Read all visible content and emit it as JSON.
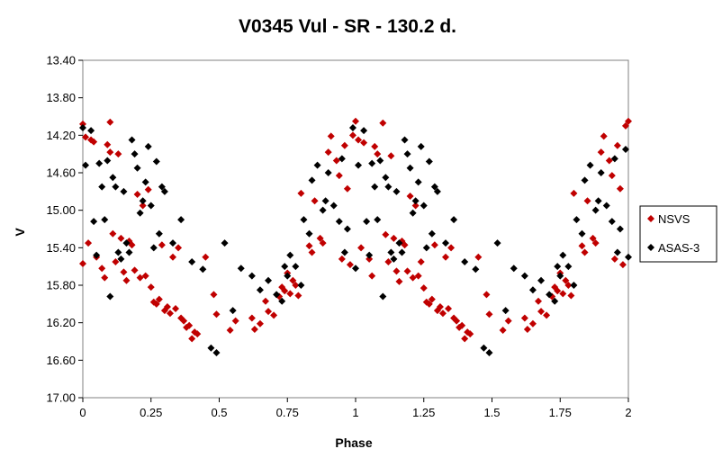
{
  "chart_data": {
    "type": "scatter",
    "title": "V0345 Vul - SR - 130.2 d.",
    "xlabel": "Phase",
    "ylabel": "V",
    "xlim": [
      0,
      2
    ],
    "ylim": [
      13.4,
      17.0
    ],
    "y_inverted": true,
    "xticks": [
      0,
      0.25,
      0.5,
      0.75,
      1,
      1.25,
      1.5,
      1.75,
      2
    ],
    "xtick_labels": [
      "0",
      "0.25",
      "0.5",
      "0.75",
      "1",
      "1.25",
      "1.5",
      "1.75",
      "2"
    ],
    "yticks": [
      13.4,
      13.8,
      14.2,
      14.6,
      15.0,
      15.4,
      15.8,
      16.2,
      16.6,
      17.0
    ],
    "ytick_labels": [
      "13.40",
      "13.80",
      "14.20",
      "14.60",
      "15.00",
      "15.40",
      "15.80",
      "16.20",
      "16.60",
      "17.00"
    ],
    "grid": false,
    "legend_position": "right",
    "series": [
      {
        "name": "NSVS",
        "color": "#c00000",
        "marker": "diamond",
        "points": [
          [
            0.0,
            14.08
          ],
          [
            0.0,
            15.57
          ],
          [
            0.01,
            14.22
          ],
          [
            0.02,
            15.35
          ],
          [
            0.03,
            14.25
          ],
          [
            0.04,
            14.27
          ],
          [
            0.05,
            15.5
          ],
          [
            0.07,
            15.62
          ],
          [
            0.08,
            15.72
          ],
          [
            0.09,
            14.3
          ],
          [
            0.1,
            14.06
          ],
          [
            0.1,
            14.38
          ],
          [
            0.11,
            15.25
          ],
          [
            0.12,
            15.55
          ],
          [
            0.13,
            14.4
          ],
          [
            0.14,
            15.3
          ],
          [
            0.15,
            15.66
          ],
          [
            0.16,
            15.75
          ],
          [
            0.17,
            15.33
          ],
          [
            0.18,
            15.37
          ],
          [
            0.19,
            15.64
          ],
          [
            0.2,
            14.83
          ],
          [
            0.21,
            15.72
          ],
          [
            0.22,
            14.95
          ],
          [
            0.23,
            15.7
          ],
          [
            0.24,
            14.78
          ],
          [
            0.25,
            15.82
          ],
          [
            0.26,
            15.98
          ],
          [
            0.27,
            16.0
          ],
          [
            0.28,
            15.95
          ],
          [
            0.29,
            15.37
          ],
          [
            0.3,
            16.07
          ],
          [
            0.31,
            16.03
          ],
          [
            0.32,
            16.1
          ],
          [
            0.33,
            15.5
          ],
          [
            0.34,
            16.05
          ],
          [
            0.35,
            15.4
          ],
          [
            0.36,
            16.15
          ],
          [
            0.37,
            16.18
          ],
          [
            0.38,
            16.25
          ],
          [
            0.39,
            16.23
          ],
          [
            0.4,
            16.37
          ],
          [
            0.41,
            16.3
          ],
          [
            0.42,
            16.32
          ],
          [
            0.45,
            15.5
          ],
          [
            0.48,
            15.9
          ],
          [
            0.49,
            16.11
          ],
          [
            0.54,
            16.28
          ],
          [
            0.56,
            16.18
          ],
          [
            0.62,
            16.15
          ],
          [
            0.63,
            16.27
          ],
          [
            0.65,
            16.21
          ],
          [
            0.67,
            15.97
          ],
          [
            0.68,
            16.08
          ],
          [
            0.7,
            16.12
          ],
          [
            0.72,
            15.92
          ],
          [
            0.73,
            15.82
          ],
          [
            0.74,
            15.86
          ],
          [
            0.75,
            15.67
          ],
          [
            0.76,
            15.89
          ],
          [
            0.77,
            15.75
          ],
          [
            0.78,
            15.8
          ],
          [
            0.79,
            15.91
          ],
          [
            0.8,
            14.82
          ],
          [
            0.83,
            15.38
          ],
          [
            0.84,
            15.45
          ],
          [
            0.85,
            14.9
          ],
          [
            0.87,
            15.3
          ],
          [
            0.88,
            15.35
          ],
          [
            0.9,
            14.38
          ],
          [
            0.91,
            14.21
          ],
          [
            0.93,
            14.47
          ],
          [
            0.94,
            14.63
          ],
          [
            0.95,
            15.52
          ],
          [
            0.96,
            14.31
          ],
          [
            0.97,
            14.77
          ],
          [
            0.98,
            15.58
          ],
          [
            0.99,
            14.2
          ],
          [
            1.0,
            14.05
          ],
          [
            1.01,
            14.25
          ],
          [
            1.02,
            15.4
          ],
          [
            1.03,
            14.28
          ],
          [
            1.05,
            15.52
          ],
          [
            1.06,
            15.7
          ],
          [
            1.07,
            14.32
          ],
          [
            1.08,
            14.4
          ],
          [
            1.1,
            14.07
          ],
          [
            1.11,
            15.26
          ],
          [
            1.12,
            15.55
          ],
          [
            1.13,
            14.42
          ],
          [
            1.14,
            15.3
          ],
          [
            1.15,
            15.65
          ],
          [
            1.16,
            15.76
          ],
          [
            1.17,
            15.33
          ],
          [
            1.18,
            15.37
          ],
          [
            1.19,
            15.65
          ],
          [
            1.2,
            14.85
          ],
          [
            1.21,
            15.72
          ],
          [
            1.22,
            14.95
          ],
          [
            1.23,
            15.7
          ],
          [
            1.24,
            15.55
          ],
          [
            1.25,
            15.83
          ],
          [
            1.26,
            15.98
          ],
          [
            1.27,
            16.0
          ],
          [
            1.28,
            15.95
          ],
          [
            1.29,
            15.37
          ],
          [
            1.3,
            16.07
          ],
          [
            1.31,
            16.03
          ],
          [
            1.32,
            16.1
          ],
          [
            1.33,
            15.5
          ],
          [
            1.34,
            16.05
          ],
          [
            1.35,
            15.4
          ],
          [
            1.36,
            16.15
          ],
          [
            1.37,
            16.18
          ],
          [
            1.38,
            16.25
          ],
          [
            1.39,
            16.23
          ],
          [
            1.4,
            16.37
          ],
          [
            1.41,
            16.3
          ],
          [
            1.42,
            16.32
          ],
          [
            1.45,
            15.5
          ],
          [
            1.48,
            15.9
          ],
          [
            1.49,
            16.11
          ],
          [
            1.54,
            16.28
          ],
          [
            1.56,
            16.18
          ],
          [
            1.62,
            16.15
          ],
          [
            1.63,
            16.27
          ],
          [
            1.65,
            16.21
          ],
          [
            1.67,
            15.97
          ],
          [
            1.68,
            16.08
          ],
          [
            1.7,
            16.12
          ],
          [
            1.72,
            15.92
          ],
          [
            1.73,
            15.82
          ],
          [
            1.74,
            15.86
          ],
          [
            1.75,
            15.67
          ],
          [
            1.76,
            15.89
          ],
          [
            1.77,
            15.75
          ],
          [
            1.78,
            15.8
          ],
          [
            1.79,
            15.91
          ],
          [
            1.8,
            14.82
          ],
          [
            1.83,
            15.38
          ],
          [
            1.84,
            15.45
          ],
          [
            1.85,
            14.9
          ],
          [
            1.87,
            15.3
          ],
          [
            1.88,
            15.35
          ],
          [
            1.9,
            14.38
          ],
          [
            1.91,
            14.21
          ],
          [
            1.93,
            14.47
          ],
          [
            1.94,
            14.63
          ],
          [
            1.95,
            15.52
          ],
          [
            1.96,
            14.31
          ],
          [
            1.97,
            14.77
          ],
          [
            1.98,
            15.58
          ],
          [
            1.99,
            14.1
          ],
          [
            2.0,
            14.05
          ]
        ]
      },
      {
        "name": "ASAS-3",
        "color": "#000000",
        "marker": "diamond",
        "points": [
          [
            0.0,
            14.12
          ],
          [
            0.01,
            14.52
          ],
          [
            0.03,
            14.15
          ],
          [
            0.04,
            15.12
          ],
          [
            0.05,
            15.48
          ],
          [
            0.06,
            14.5
          ],
          [
            0.07,
            14.75
          ],
          [
            0.08,
            15.1
          ],
          [
            0.09,
            14.47
          ],
          [
            0.1,
            15.92
          ],
          [
            0.11,
            14.65
          ],
          [
            0.12,
            14.75
          ],
          [
            0.13,
            15.45
          ],
          [
            0.14,
            15.52
          ],
          [
            0.15,
            14.8
          ],
          [
            0.16,
            15.35
          ],
          [
            0.17,
            15.45
          ],
          [
            0.18,
            14.25
          ],
          [
            0.19,
            14.4
          ],
          [
            0.2,
            14.55
          ],
          [
            0.21,
            15.03
          ],
          [
            0.22,
            14.9
          ],
          [
            0.23,
            14.7
          ],
          [
            0.24,
            14.32
          ],
          [
            0.25,
            14.95
          ],
          [
            0.26,
            15.4
          ],
          [
            0.27,
            14.48
          ],
          [
            0.28,
            15.25
          ],
          [
            0.29,
            14.75
          ],
          [
            0.3,
            14.8
          ],
          [
            0.33,
            15.35
          ],
          [
            0.36,
            15.1
          ],
          [
            0.4,
            15.55
          ],
          [
            0.44,
            15.63
          ],
          [
            0.47,
            16.47
          ],
          [
            0.49,
            16.52
          ],
          [
            0.52,
            15.35
          ],
          [
            0.55,
            16.07
          ],
          [
            0.58,
            15.62
          ],
          [
            0.62,
            15.7
          ],
          [
            0.65,
            15.85
          ],
          [
            0.68,
            15.75
          ],
          [
            0.71,
            15.9
          ],
          [
            0.73,
            15.97
          ],
          [
            0.74,
            15.6
          ],
          [
            0.75,
            15.7
          ],
          [
            0.76,
            15.48
          ],
          [
            0.78,
            15.6
          ],
          [
            0.8,
            15.8
          ],
          [
            0.81,
            15.1
          ],
          [
            0.83,
            15.25
          ],
          [
            0.84,
            14.68
          ],
          [
            0.86,
            14.52
          ],
          [
            0.88,
            15.0
          ],
          [
            0.89,
            14.9
          ],
          [
            0.9,
            14.6
          ],
          [
            0.92,
            14.95
          ],
          [
            0.94,
            15.12
          ],
          [
            0.95,
            14.45
          ],
          [
            0.96,
            15.45
          ],
          [
            0.97,
            15.2
          ],
          [
            0.99,
            14.12
          ],
          [
            1.0,
            15.62
          ],
          [
            1.01,
            14.52
          ],
          [
            1.03,
            14.15
          ],
          [
            1.04,
            15.12
          ],
          [
            1.05,
            15.48
          ],
          [
            1.06,
            14.5
          ],
          [
            1.07,
            14.75
          ],
          [
            1.08,
            15.1
          ],
          [
            1.09,
            14.47
          ],
          [
            1.1,
            15.92
          ],
          [
            1.11,
            14.65
          ],
          [
            1.12,
            14.75
          ],
          [
            1.13,
            15.45
          ],
          [
            1.14,
            15.52
          ],
          [
            1.15,
            14.8
          ],
          [
            1.16,
            15.35
          ],
          [
            1.17,
            15.45
          ],
          [
            1.18,
            14.25
          ],
          [
            1.19,
            14.4
          ],
          [
            1.2,
            14.55
          ],
          [
            1.21,
            15.03
          ],
          [
            1.22,
            14.9
          ],
          [
            1.23,
            14.7
          ],
          [
            1.24,
            14.32
          ],
          [
            1.25,
            14.95
          ],
          [
            1.26,
            15.4
          ],
          [
            1.27,
            14.48
          ],
          [
            1.28,
            15.25
          ],
          [
            1.29,
            14.75
          ],
          [
            1.3,
            14.8
          ],
          [
            1.33,
            15.35
          ],
          [
            1.36,
            15.1
          ],
          [
            1.4,
            15.55
          ],
          [
            1.44,
            15.63
          ],
          [
            1.47,
            16.47
          ],
          [
            1.49,
            16.52
          ],
          [
            1.52,
            15.35
          ],
          [
            1.55,
            16.07
          ],
          [
            1.58,
            15.62
          ],
          [
            1.62,
            15.7
          ],
          [
            1.65,
            15.85
          ],
          [
            1.68,
            15.75
          ],
          [
            1.71,
            15.9
          ],
          [
            1.73,
            15.97
          ],
          [
            1.74,
            15.6
          ],
          [
            1.75,
            15.7
          ],
          [
            1.76,
            15.48
          ],
          [
            1.78,
            15.6
          ],
          [
            1.8,
            15.8
          ],
          [
            1.81,
            15.1
          ],
          [
            1.83,
            15.25
          ],
          [
            1.84,
            14.68
          ],
          [
            1.86,
            14.52
          ],
          [
            1.88,
            15.0
          ],
          [
            1.89,
            14.9
          ],
          [
            1.9,
            14.6
          ],
          [
            1.92,
            14.95
          ],
          [
            1.94,
            15.12
          ],
          [
            1.95,
            14.45
          ],
          [
            1.96,
            15.45
          ],
          [
            1.97,
            15.2
          ],
          [
            1.99,
            14.35
          ],
          [
            2.0,
            15.5
          ]
        ]
      }
    ]
  }
}
